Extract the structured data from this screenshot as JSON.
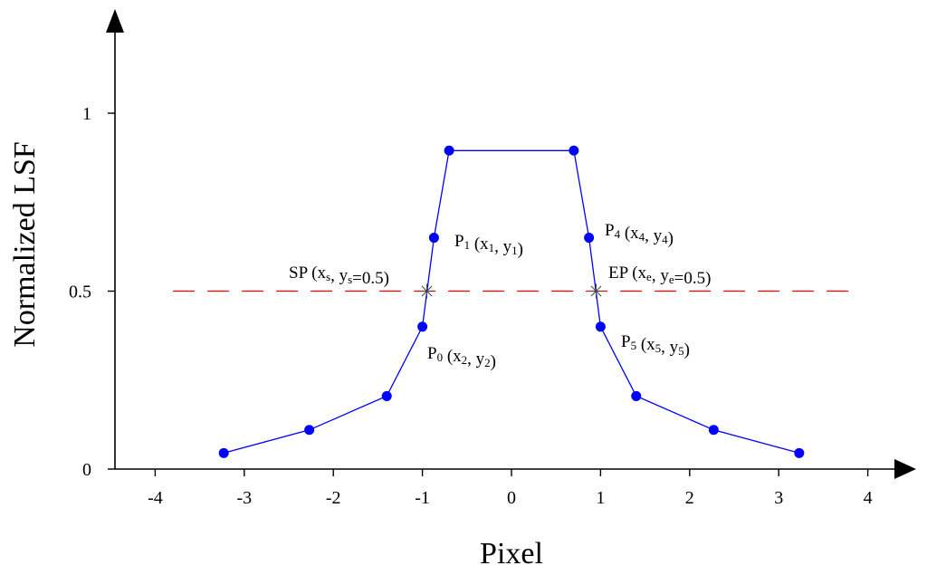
{
  "chart_data": {
    "type": "line",
    "xlabel": "Pixel",
    "ylabel": "Normalized LSF",
    "xlim": [
      -4,
      4
    ],
    "ylim": [
      0,
      1
    ],
    "xticks": [
      {
        "value": -4,
        "label": "-4"
      },
      {
        "value": -3,
        "label": "-3"
      },
      {
        "value": -2,
        "label": "-2"
      },
      {
        "value": -1,
        "label": "-1"
      },
      {
        "value": 0,
        "label": "0"
      },
      {
        "value": 1,
        "label": "1"
      },
      {
        "value": 2,
        "label": "2"
      },
      {
        "value": 3,
        "label": "3"
      },
      {
        "value": 4,
        "label": "4"
      }
    ],
    "yticks": [
      {
        "value": 0,
        "label": "0"
      },
      {
        "value": 0.5,
        "label": "0.5"
      },
      {
        "value": 1,
        "label": "1"
      }
    ],
    "grid": false,
    "series": [
      {
        "color": "#0000ff",
        "x": [
          -3.23,
          -2.27,
          -1.4,
          -1.0,
          -0.87,
          -0.7,
          0.7,
          0.87,
          1.0,
          1.4,
          2.27,
          3.23
        ],
        "y": [
          0.045,
          0.11,
          0.205,
          0.4,
          0.65,
          0.895,
          0.895,
          0.65,
          0.4,
          0.205,
          0.11,
          0.045
        ]
      }
    ],
    "reference_line": {
      "y": 0.5,
      "x_range": [
        -3.8,
        3.85
      ],
      "color": "#ff0000",
      "style": "dashed"
    },
    "crossing_markers": [
      {
        "x": -0.95,
        "y": 0.5
      },
      {
        "x": 0.95,
        "y": 0.5
      }
    ],
    "annotations": [
      {
        "parts": [
          {
            "t": "P"
          },
          {
            "t": "1",
            "sub": true
          },
          {
            "t": " (x"
          },
          {
            "t": "1",
            "sub": true
          },
          {
            "t": ", y"
          },
          {
            "t": "1",
            "sub": true
          },
          {
            "t": ")"
          }
        ]
      },
      {
        "parts": [
          {
            "t": "P"
          },
          {
            "t": "4",
            "sub": true
          },
          {
            "t": " (x"
          },
          {
            "t": "4",
            "sub": true
          },
          {
            "t": ", y"
          },
          {
            "t": "4",
            "sub": true
          },
          {
            "t": ")"
          }
        ]
      },
      {
        "parts": [
          {
            "t": "SP (x"
          },
          {
            "t": "s",
            "sub": true
          },
          {
            "t": ", y"
          },
          {
            "t": "s",
            "sub": true
          },
          {
            "t": "=0.5)"
          }
        ]
      },
      {
        "parts": [
          {
            "t": "EP (x"
          },
          {
            "t": "e",
            "sub": true
          },
          {
            "t": ", y"
          },
          {
            "t": "e",
            "sub": true
          },
          {
            "t": "=0.5)"
          }
        ]
      },
      {
        "parts": [
          {
            "t": "P"
          },
          {
            "t": "0",
            "sub": true
          },
          {
            "t": " (x"
          },
          {
            "t": "2",
            "sub": true
          },
          {
            "t": ", y"
          },
          {
            "t": "2",
            "sub": true
          },
          {
            "t": ")"
          }
        ]
      },
      {
        "parts": [
          {
            "t": "P"
          },
          {
            "t": "5",
            "sub": true
          },
          {
            "t": " (x"
          },
          {
            "t": "5",
            "sub": true
          },
          {
            "t": ", y"
          },
          {
            "t": "5",
            "sub": true
          },
          {
            "t": ")"
          }
        ]
      }
    ]
  }
}
